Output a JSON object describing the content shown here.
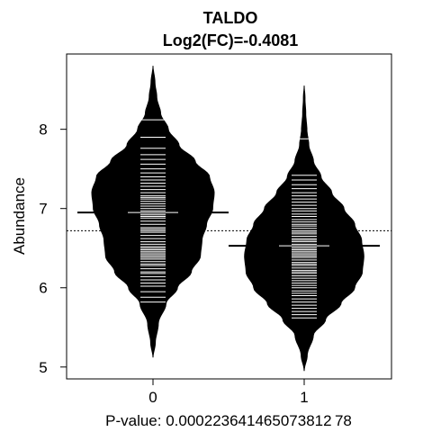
{
  "chart_data": {
    "type": "beanplot",
    "title": "TALDO",
    "subtitle": "Log2(FC)=-0.4081",
    "ylabel": "Abundance",
    "xlabel": "P-value: 0.000223641465073812 78",
    "ylim": [
      4.85,
      8.95
    ],
    "yticks": [
      5,
      6,
      7,
      8
    ],
    "categories": [
      "0",
      "1"
    ],
    "overall_mean": 6.72,
    "groups": [
      {
        "name": "0",
        "mean": 6.95,
        "min": 5.12,
        "max": 8.8,
        "density": [
          [
            5.12,
            0.0
          ],
          [
            5.3,
            0.03
          ],
          [
            5.55,
            0.07
          ],
          [
            5.8,
            0.17
          ],
          [
            6.0,
            0.32
          ],
          [
            6.2,
            0.5
          ],
          [
            6.4,
            0.62
          ],
          [
            6.6,
            0.64
          ],
          [
            6.8,
            0.7
          ],
          [
            7.0,
            0.78
          ],
          [
            7.2,
            0.8
          ],
          [
            7.4,
            0.74
          ],
          [
            7.6,
            0.55
          ],
          [
            7.8,
            0.34
          ],
          [
            8.0,
            0.2
          ],
          [
            8.2,
            0.1
          ],
          [
            8.4,
            0.05
          ],
          [
            8.6,
            0.025
          ],
          [
            8.8,
            0.0
          ]
        ],
        "lines": [
          5.82,
          5.88,
          5.95,
          6.02,
          6.06,
          6.1,
          6.14,
          6.18,
          6.2,
          6.24,
          6.28,
          6.3,
          6.33,
          6.36,
          6.38,
          6.4,
          6.42,
          6.44,
          6.46,
          6.48,
          6.5,
          6.52,
          6.55,
          6.58,
          6.62,
          6.66,
          6.7,
          6.72,
          6.74,
          6.76,
          6.8,
          6.84,
          6.88,
          6.9,
          6.92,
          6.94,
          6.97,
          7.0,
          7.03,
          7.06,
          7.09,
          7.12,
          7.14,
          7.16,
          7.2,
          7.24,
          7.28,
          7.32,
          7.36,
          7.4,
          7.45,
          7.5,
          7.56,
          7.62,
          7.68,
          7.76,
          7.9,
          8.12
        ]
      },
      {
        "name": "1",
        "mean": 6.53,
        "min": 4.95,
        "max": 8.55,
        "density": [
          [
            4.95,
            0.0
          ],
          [
            5.15,
            0.04
          ],
          [
            5.4,
            0.12
          ],
          [
            5.6,
            0.28
          ],
          [
            5.8,
            0.48
          ],
          [
            6.0,
            0.66
          ],
          [
            6.2,
            0.76
          ],
          [
            6.4,
            0.78
          ],
          [
            6.6,
            0.75
          ],
          [
            6.8,
            0.66
          ],
          [
            7.0,
            0.52
          ],
          [
            7.2,
            0.36
          ],
          [
            7.4,
            0.22
          ],
          [
            7.6,
            0.12
          ],
          [
            7.8,
            0.06
          ],
          [
            8.0,
            0.035
          ],
          [
            8.2,
            0.02
          ],
          [
            8.4,
            0.01
          ],
          [
            8.55,
            0.0
          ]
        ],
        "lines": [
          5.62,
          5.66,
          5.7,
          5.74,
          5.78,
          5.82,
          5.86,
          5.9,
          5.93,
          5.96,
          6.0,
          6.03,
          6.06,
          6.09,
          6.12,
          6.15,
          6.18,
          6.2,
          6.22,
          6.25,
          6.28,
          6.3,
          6.32,
          6.35,
          6.38,
          6.4,
          6.42,
          6.44,
          6.46,
          6.48,
          6.5,
          6.52,
          6.55,
          6.58,
          6.6,
          6.62,
          6.65,
          6.68,
          6.7,
          6.72,
          6.75,
          6.78,
          6.8,
          6.83,
          6.86,
          6.9,
          6.93,
          6.97,
          7.0,
          7.04,
          7.08,
          7.12,
          7.16,
          7.2,
          7.25,
          7.3,
          7.36,
          7.42,
          7.88
        ]
      }
    ],
    "colors": {
      "bean": "#000000",
      "line": "#ffffff",
      "axis": "#000000"
    }
  }
}
